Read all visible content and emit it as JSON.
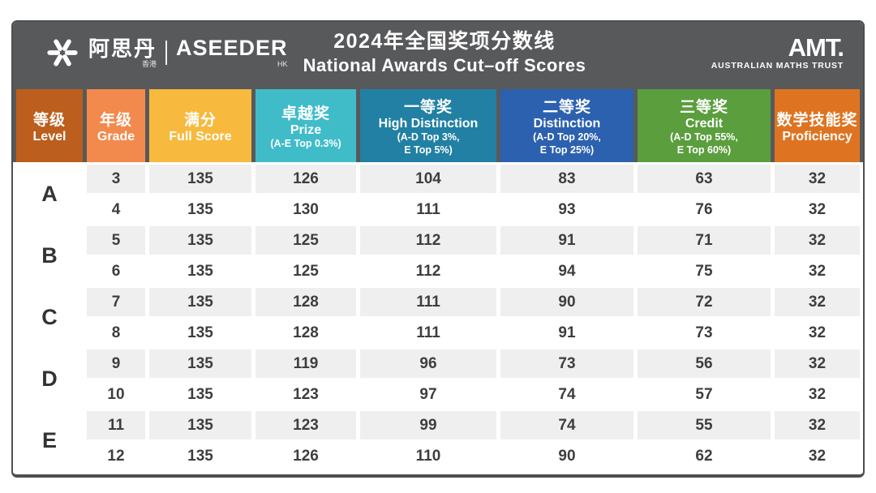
{
  "topbar": {
    "aseeder_zh": "阿思丹",
    "aseeder_zh_small": "香港",
    "aseeder_en": "ASEEDER",
    "aseeder_en_small": "HK",
    "title_zh": "2024年全国奖项分数线",
    "title_en": "National Awards Cut–off Scores",
    "amt_name": "AMT.",
    "amt_subtitle": "AUSTRALIAN MATHS TRUST"
  },
  "table": {
    "columns": [
      {
        "id": "level",
        "zh": "等级",
        "en": "Level",
        "note_lines": [],
        "color": "#bc5e1d"
      },
      {
        "id": "grade",
        "zh": "年级",
        "en": "Grade",
        "note_lines": [],
        "color": "#f28a4d"
      },
      {
        "id": "full-score",
        "zh": "满分",
        "en": "Full Score",
        "note_lines": [],
        "color": "#f7b93e"
      },
      {
        "id": "prize",
        "zh": "卓越奖",
        "en": "Prize",
        "note_lines": [
          "(A-E Top 0.3%)"
        ],
        "color": "#40bcc9"
      },
      {
        "id": "high-distinction",
        "zh": "一等奖",
        "en": "High Distinction",
        "note_lines": [
          "(A-D Top 3%,",
          "E Top 5%)"
        ],
        "color": "#2180a4"
      },
      {
        "id": "distinction",
        "zh": "二等奖",
        "en": "Distinction",
        "note_lines": [
          "(A-D Top 20%,",
          "E Top 25%)"
        ],
        "color": "#2c61af"
      },
      {
        "id": "credit",
        "zh": "三等奖",
        "en": "Credit",
        "note_lines": [
          "(A-D Top 55%,",
          "E Top 60%)"
        ],
        "color": "#5a9e3d"
      },
      {
        "id": "proficiency",
        "zh": "数学技能奖",
        "en": "Proficiency",
        "note_lines": [],
        "color": "#de7421"
      }
    ]
  },
  "chart_data": {
    "type": "table",
    "title": "2024年全国奖项分数线 National Awards Cut–off Scores",
    "columns": [
      "等级 Level",
      "年级 Grade",
      "满分 Full Score",
      "卓越奖 Prize (A-E Top 0.3%)",
      "一等奖 High Distinction (A-D Top 3%, E Top 5%)",
      "二等奖 Distinction (A-D Top 20%, E Top 25%)",
      "三等奖 Credit (A-D Top 55%, E Top 60%)",
      "数学技能奖 Proficiency"
    ],
    "rows": [
      [
        "A",
        "3",
        "135",
        "126",
        "104",
        "83",
        "63",
        "32"
      ],
      [
        "A",
        "4",
        "135",
        "130",
        "111",
        "93",
        "76",
        "32"
      ],
      [
        "B",
        "5",
        "135",
        "125",
        "112",
        "91",
        "71",
        "32"
      ],
      [
        "B",
        "6",
        "135",
        "125",
        "112",
        "94",
        "75",
        "32"
      ],
      [
        "C",
        "7",
        "135",
        "128",
        "111",
        "90",
        "72",
        "32"
      ],
      [
        "C",
        "8",
        "135",
        "128",
        "111",
        "91",
        "73",
        "32"
      ],
      [
        "D",
        "9",
        "135",
        "119",
        "96",
        "73",
        "56",
        "32"
      ],
      [
        "D",
        "10",
        "135",
        "123",
        "97",
        "74",
        "57",
        "32"
      ],
      [
        "E",
        "11",
        "135",
        "123",
        "99",
        "74",
        "55",
        "32"
      ],
      [
        "E",
        "12",
        "135",
        "126",
        "110",
        "90",
        "62",
        "32"
      ]
    ]
  },
  "colors": {
    "band": "#58595b",
    "row_alt": "#efefef",
    "card_border": "#4e4f51",
    "text_dark": "#3e3e3e"
  }
}
